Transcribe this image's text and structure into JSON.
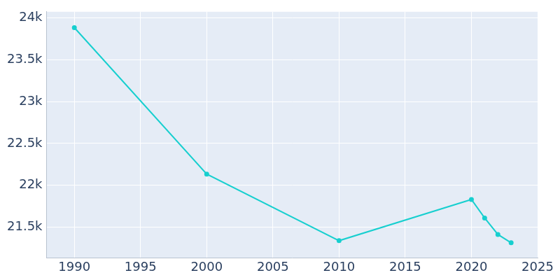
{
  "chart_data": {
    "type": "line",
    "x": [
      1990,
      2000,
      2010,
      2020,
      2021,
      2022,
      2023
    ],
    "values": [
      23885,
      22133,
      21336,
      21829,
      21607,
      21410,
      21311
    ],
    "color": "#17cfcf",
    "marker": "circle",
    "xlim": [
      1987.9,
      2025
    ],
    "xticks": [
      1990,
      1995,
      2000,
      2005,
      2010,
      2015,
      2020,
      2025
    ],
    "ylim": [
      21130,
      24075
    ],
    "yticks": [
      {
        "value": 21500,
        "label": "21.5k"
      },
      {
        "value": 22000,
        "label": "22k"
      },
      {
        "value": 22500,
        "label": "22.5k"
      },
      {
        "value": 23000,
        "label": "23k"
      },
      {
        "value": 23500,
        "label": "23.5k"
      },
      {
        "value": 24000,
        "label": "24k"
      }
    ],
    "grid": true
  }
}
